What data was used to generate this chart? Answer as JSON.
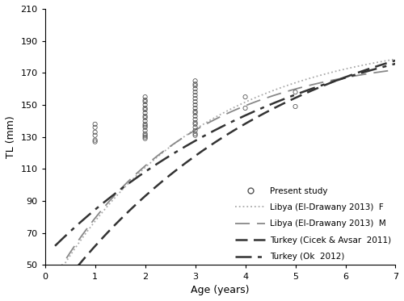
{
  "title": "",
  "xlabel": "Age (years)",
  "ylabel": "TL (mm)",
  "xlim": [
    0.2,
    7
  ],
  "ylim": [
    50,
    210
  ],
  "xticks": [
    0,
    1,
    2,
    3,
    4,
    5,
    6,
    7
  ],
  "yticks": [
    50,
    70,
    90,
    110,
    130,
    150,
    170,
    190,
    210
  ],
  "background_color": "#ffffff",
  "present_study_points": [
    [
      1.0,
      138
    ],
    [
      1.0,
      136
    ],
    [
      1.0,
      133
    ],
    [
      1.0,
      131
    ],
    [
      1.0,
      128
    ],
    [
      1.0,
      127
    ],
    [
      2.0,
      155
    ],
    [
      2.0,
      153
    ],
    [
      2.0,
      152
    ],
    [
      2.0,
      150
    ],
    [
      2.0,
      148
    ],
    [
      2.0,
      147
    ],
    [
      2.0,
      145
    ],
    [
      2.0,
      143
    ],
    [
      2.0,
      142
    ],
    [
      2.0,
      140
    ],
    [
      2.0,
      138
    ],
    [
      2.0,
      137
    ],
    [
      2.0,
      136
    ],
    [
      2.0,
      134
    ],
    [
      2.0,
      132
    ],
    [
      2.0,
      131
    ],
    [
      2.0,
      130
    ],
    [
      2.0,
      129
    ],
    [
      3.0,
      165
    ],
    [
      3.0,
      163
    ],
    [
      3.0,
      162
    ],
    [
      3.0,
      160
    ],
    [
      3.0,
      158
    ],
    [
      3.0,
      156
    ],
    [
      3.0,
      154
    ],
    [
      3.0,
      152
    ],
    [
      3.0,
      150
    ],
    [
      3.0,
      148
    ],
    [
      3.0,
      146
    ],
    [
      3.0,
      145
    ],
    [
      3.0,
      143
    ],
    [
      3.0,
      141
    ],
    [
      3.0,
      139
    ],
    [
      3.0,
      138
    ],
    [
      3.0,
      136
    ],
    [
      3.0,
      134
    ],
    [
      3.0,
      132
    ],
    [
      3.0,
      131
    ],
    [
      4.0,
      155
    ],
    [
      4.0,
      148
    ],
    [
      5.0,
      158
    ],
    [
      5.0,
      149
    ]
  ],
  "vbgf_curves": {
    "libya_F": {
      "Linf": 193.7,
      "K": 0.34,
      "t0": -0.5,
      "color": "#aaaaaa",
      "label": "Libya (El-Drawany 2013)  F"
    },
    "libya_M": {
      "Linf": 182.5,
      "K": 0.38,
      "t0": -0.5,
      "color": "#888888",
      "label": "Libya (El-Drawany 2013)  M"
    },
    "turkey_cicek": {
      "Linf": 220.0,
      "K": 0.22,
      "t0": -0.5,
      "color": "#333333",
      "label": "Turkey (Cicek & Avsar  2011)"
    },
    "turkey_ok": {
      "Linf": 215.0,
      "K": 0.2,
      "t0": -1.5,
      "color": "#333333",
      "label": "Turkey (Ok  2012)"
    }
  }
}
